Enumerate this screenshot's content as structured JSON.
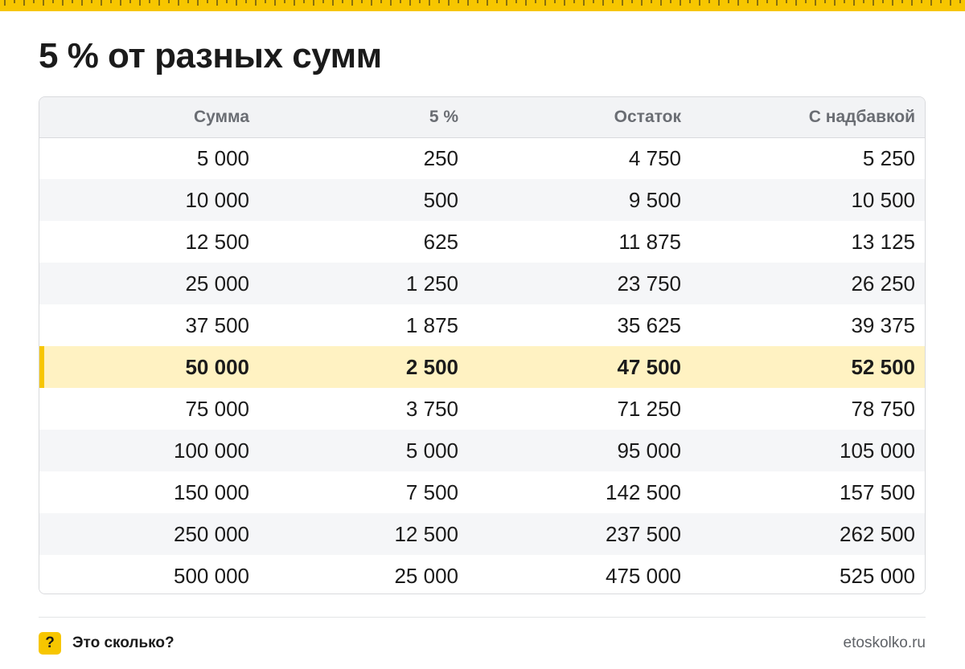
{
  "title": "5 % от разных сумм",
  "table": {
    "headers": [
      "Сумма",
      "5 %",
      "Остаток",
      "С надбавкой"
    ],
    "highlight_row": 5,
    "rows": [
      [
        "5 000",
        "250",
        "4 750",
        "5 250"
      ],
      [
        "10 000",
        "500",
        "9 500",
        "10 500"
      ],
      [
        "12 500",
        "625",
        "11 875",
        "13 125"
      ],
      [
        "25 000",
        "1 250",
        "23 750",
        "26 250"
      ],
      [
        "37 500",
        "1 875",
        "35 625",
        "39 375"
      ],
      [
        "50 000",
        "2 500",
        "47 500",
        "52 500"
      ],
      [
        "75 000",
        "3 750",
        "71 250",
        "78 750"
      ],
      [
        "100 000",
        "5 000",
        "95 000",
        "105 000"
      ],
      [
        "150 000",
        "7 500",
        "142 500",
        "157 500"
      ],
      [
        "250 000",
        "12 500",
        "237 500",
        "262 500"
      ],
      [
        "500 000",
        "25 000",
        "475 000",
        "525 000"
      ]
    ]
  },
  "footer": {
    "icon": "question-mark-icon",
    "icon_glyph": "?",
    "brand": "Это сколько?",
    "site": "etoskolko.ru"
  },
  "colors": {
    "accent": "#f7c600",
    "highlight_row": "#fff2c2",
    "header_bg": "#f2f3f5",
    "zebra": "#f5f6f8"
  }
}
